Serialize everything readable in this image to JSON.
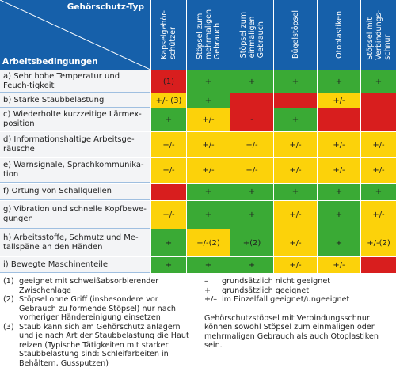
{
  "header": {
    "column_group_title": "Gehörschutz-Typ",
    "row_group_title": "Arbeitsbedingungen",
    "columns": [
      {
        "lines": [
          "Kapselgehör-",
          "schützer"
        ]
      },
      {
        "lines": [
          "Stöpsel zum",
          "mehrmaligen",
          "Gebrauch"
        ]
      },
      {
        "lines": [
          "Stöpsel zum",
          "einmaligen",
          "Gebrauch"
        ]
      },
      {
        "lines": [
          "Bügelstöpsel"
        ]
      },
      {
        "lines": [
          "Otoplastiken"
        ]
      },
      {
        "lines": [
          "Stöpsel mit",
          "Verbindungs-",
          "schnur"
        ]
      }
    ]
  },
  "colors": {
    "green": "#3aaa35",
    "yellow": "#fcd20a",
    "red": "#d81e1e"
  },
  "rows": [
    {
      "label": "a) Sehr hohe Temperatur und Feuch-tigkeit",
      "cells": [
        {
          "text": "(1)",
          "rating": "red"
        },
        {
          "text": "+",
          "rating": "green"
        },
        {
          "text": "+",
          "rating": "green"
        },
        {
          "text": "+",
          "rating": "green"
        },
        {
          "text": "+",
          "rating": "green"
        },
        {
          "text": "+",
          "rating": "green"
        }
      ]
    },
    {
      "label": "b) Starke Staubbelastung",
      "cells": [
        {
          "text": "+/- (3)",
          "rating": "yellow"
        },
        {
          "text": "+",
          "rating": "green"
        },
        {
          "rating": "red"
        },
        {
          "rating": "red"
        },
        {
          "text": "+/-",
          "rating": "yellow"
        },
        {
          "rating": "red"
        }
      ]
    },
    {
      "label": "c) Wiederholte kurzzeitige Lärmex-position",
      "cells": [
        {
          "text": "+",
          "rating": "green"
        },
        {
          "text": "+/-",
          "rating": "yellow"
        },
        {
          "text": "-",
          "rating": "red"
        },
        {
          "text": "+",
          "rating": "green"
        },
        {
          "rating": "red"
        },
        {
          "rating": "red"
        }
      ]
    },
    {
      "label": "d) Informationshaltige Arbeitsge-räusche",
      "cells": [
        {
          "text": "+/-",
          "rating": "yellow"
        },
        {
          "text": "+/-",
          "rating": "yellow"
        },
        {
          "text": "+/-",
          "rating": "yellow"
        },
        {
          "text": "+/-",
          "rating": "yellow"
        },
        {
          "text": "+/-",
          "rating": "yellow"
        },
        {
          "text": "+/-",
          "rating": "yellow"
        }
      ]
    },
    {
      "label": "e) Warnsignale, Sprachkommunika-tion",
      "cells": [
        {
          "text": "+/-",
          "rating": "yellow"
        },
        {
          "text": "+/-",
          "rating": "yellow"
        },
        {
          "text": "+/-",
          "rating": "yellow"
        },
        {
          "text": "+/-",
          "rating": "yellow"
        },
        {
          "text": "+/-",
          "rating": "yellow"
        },
        {
          "text": "+/-",
          "rating": "yellow"
        }
      ]
    },
    {
      "label": "f) Ortung von Schallquellen",
      "cells": [
        {
          "rating": "red"
        },
        {
          "text": "+",
          "rating": "green"
        },
        {
          "text": "+",
          "rating": "green"
        },
        {
          "text": "+",
          "rating": "green"
        },
        {
          "text": "+",
          "rating": "green"
        },
        {
          "text": "+",
          "rating": "green"
        }
      ]
    },
    {
      "label": "g) Vibration und schnelle Kopfbewe-gungen",
      "cells": [
        {
          "text": "+/-",
          "rating": "yellow"
        },
        {
          "text": "+",
          "rating": "green"
        },
        {
          "text": "+",
          "rating": "green"
        },
        {
          "text": "+/-",
          "rating": "yellow"
        },
        {
          "text": "+",
          "rating": "green"
        },
        {
          "text": "+/-",
          "rating": "yellow"
        }
      ]
    },
    {
      "label": "h) Arbeitsstoffe, Schmutz und Me-tallspäne an den Händen",
      "cells": [
        {
          "text": "+",
          "rating": "green"
        },
        {
          "text": "+/-(2)",
          "rating": "yellow"
        },
        {
          "text": "+(2)",
          "rating": "green"
        },
        {
          "text": "+/-",
          "rating": "yellow"
        },
        {
          "text": "+",
          "rating": "green"
        },
        {
          "text": "+/-(2)",
          "rating": "yellow"
        }
      ]
    },
    {
      "label": "i) Bewegte Maschinenteile",
      "cells": [
        {
          "text": "+",
          "rating": "green"
        },
        {
          "text": "+",
          "rating": "green"
        },
        {
          "text": "+",
          "rating": "green"
        },
        {
          "text": "+/-",
          "rating": "yellow"
        },
        {
          "text": "+/-",
          "rating": "yellow"
        },
        {
          "rating": "red"
        }
      ]
    }
  ],
  "notes": [
    {
      "marker": "(1)",
      "text": "geeignet mit schweißabsorbierender Zwischenlage"
    },
    {
      "marker": "(2)",
      "text": "Stöpsel ohne Griff (insbesondere vor Gebrauch zu formende Stöpsel) nur nach vorheriger Händereinigung einsetzen"
    },
    {
      "marker": "(3)",
      "text": "Staub kann sich am Gehörschutz anlagern und je nach Art der Staubbelastung die Haut reizen (Typische Tätigkeiten mit starker Staubbelastung sind: Schleifarbeiten in Behältern, Gussputzen)"
    }
  ],
  "legend": [
    {
      "symbol": "–",
      "text": "grundsätzlich nicht geeignet"
    },
    {
      "symbol": "+",
      "text": "grundsätzlich geeignet"
    },
    {
      "symbol": "+/–",
      "text": "im Einzelfall geeignet/ungeeignet"
    }
  ],
  "remark": "Gehörschutzstöpsel mit Verbindungsschnur können sowohl Stöpsel zum einmaligen oder mehrmaligen Gebrauch als auch Otoplastiken sein."
}
